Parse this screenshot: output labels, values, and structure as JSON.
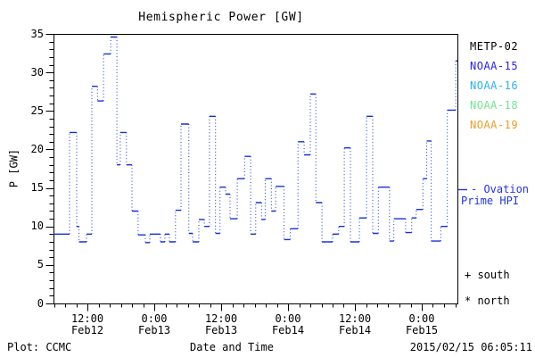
{
  "window": {
    "background": "#ffffff"
  },
  "header": {
    "title": "Hemispheric Power [GW]"
  },
  "axes": {
    "ylabel": "P [GW]",
    "xlabel": "Date and Time",
    "y_tick_labels": [
      "0",
      "5",
      "10",
      "15",
      "20",
      "25",
      "30",
      "35"
    ],
    "x_tick_labels": [
      {
        "time": "12:00",
        "date": "Feb12",
        "hours": 12
      },
      {
        "time": "0:00",
        "date": "Feb13",
        "hours": 24
      },
      {
        "time": "12:00",
        "date": "Feb13",
        "hours": 36
      },
      {
        "time": "0:00",
        "date": "Feb14",
        "hours": 48
      },
      {
        "time": "12:00",
        "date": "Feb14",
        "hours": 60
      },
      {
        "time": "0:00",
        "date": "Feb15",
        "hours": 72
      }
    ]
  },
  "legend": {
    "satellites": [
      {
        "label": "METP-02",
        "color": "#000000"
      },
      {
        "label": "NOAA-15",
        "color": "#2424f0"
      },
      {
        "label": "NOAA-16",
        "color": "#2ab4f0"
      },
      {
        "label": "NOAA-18",
        "color": "#6ee68e"
      },
      {
        "label": "NOAA-19",
        "color": "#f09c28"
      }
    ],
    "curve_note_line1": "- Ovation",
    "curve_note_line2": "Prime HPI",
    "curve_note_color": "#2233ee",
    "symbol_south": "+ south",
    "symbol_north": "* north"
  },
  "footer": {
    "left": "Plot: CCMC",
    "center": "Date and Time",
    "right": "2015/02/15 06:05:11"
  },
  "chart_data": {
    "type": "line",
    "subtype": "step-post-dotted",
    "title": "Hemispheric Power [GW]",
    "xlabel": "Date and Time",
    "ylabel": "P [GW]",
    "ylim": [
      0,
      35
    ],
    "y_major_tick_step": 5,
    "y_minor_tick_step": 1,
    "x_range_hours": [
      5.92,
      78.4
    ],
    "x_hours_reference": "hours since Feb 12 00:00 (labels shown on axis)",
    "x_major_ticks_hours": [
      12,
      24,
      36,
      48,
      60,
      72
    ],
    "x_minor_step_hours": 2,
    "grid": false,
    "legend_position": "right-margin",
    "series": [
      {
        "name": "Ovation Prime HPI",
        "color": "#1430d8",
        "units": "GW",
        "points_hours_gw": [
          [
            5.92,
            9.0
          ],
          [
            8.8,
            22.2
          ],
          [
            10.08,
            10.0
          ],
          [
            10.5,
            8.0
          ],
          [
            11.85,
            9.0
          ],
          [
            12.8,
            28.2
          ],
          [
            13.8,
            26.3
          ],
          [
            14.9,
            32.4
          ],
          [
            16.2,
            34.6
          ],
          [
            17.3,
            18.0
          ],
          [
            17.9,
            22.2
          ],
          [
            19.0,
            18.0
          ],
          [
            20.0,
            12.0
          ],
          [
            21.1,
            8.9
          ],
          [
            22.4,
            7.9
          ],
          [
            23.2,
            9.0
          ],
          [
            25.1,
            8.0
          ],
          [
            25.9,
            9.0
          ],
          [
            26.7,
            8.0
          ],
          [
            27.8,
            12.1
          ],
          [
            28.8,
            23.3
          ],
          [
            30.2,
            9.1
          ],
          [
            30.9,
            8.0
          ],
          [
            32.0,
            10.9
          ],
          [
            33.0,
            10.0
          ],
          [
            33.9,
            24.3
          ],
          [
            35.0,
            9.1
          ],
          [
            35.8,
            15.1
          ],
          [
            36.8,
            14.2
          ],
          [
            37.6,
            11.0
          ],
          [
            38.9,
            16.2
          ],
          [
            40.2,
            19.1
          ],
          [
            41.3,
            9.0
          ],
          [
            42.2,
            13.1
          ],
          [
            43.25,
            10.9
          ],
          [
            43.9,
            16.2
          ],
          [
            45.0,
            12.0
          ],
          [
            45.8,
            15.2
          ],
          [
            47.3,
            8.3
          ],
          [
            48.4,
            9.7
          ],
          [
            49.8,
            21.0
          ],
          [
            50.9,
            19.3
          ],
          [
            52.0,
            27.2
          ],
          [
            53.0,
            13.1
          ],
          [
            54.1,
            8.0
          ],
          [
            56.0,
            9.0
          ],
          [
            57.1,
            10.0
          ],
          [
            58.1,
            20.2
          ],
          [
            59.2,
            8.0
          ],
          [
            60.8,
            11.1
          ],
          [
            62.1,
            24.3
          ],
          [
            63.2,
            9.1
          ],
          [
            64.2,
            15.1
          ],
          [
            66.2,
            8.1
          ],
          [
            67.0,
            11.0
          ],
          [
            69.1,
            9.2
          ],
          [
            70.2,
            11.1
          ],
          [
            71.0,
            12.2
          ],
          [
            72.2,
            16.2
          ],
          [
            72.9,
            21.1
          ],
          [
            73.7,
            8.1
          ],
          [
            75.4,
            10.0
          ],
          [
            76.6,
            25.1
          ],
          [
            78.1,
            31.5
          ]
        ]
      }
    ]
  }
}
